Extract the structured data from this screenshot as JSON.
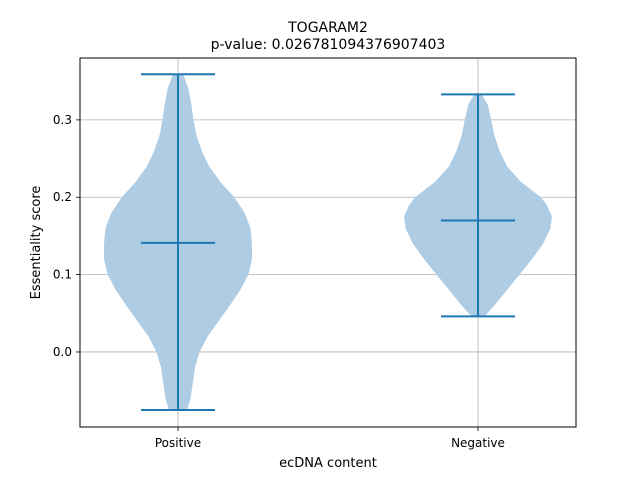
{
  "chart_data": {
    "type": "violin",
    "title": "TOGARAM2",
    "subtitle": "p-value: 0.026781094376907403",
    "xlabel": "ecDNA content",
    "ylabel": "Essentiality score",
    "categories": [
      "Positive",
      "Negative"
    ],
    "ylim": [
      -0.097,
      0.38
    ],
    "yticks": [
      0.0,
      0.1,
      0.2,
      0.3
    ],
    "ytick_labels": [
      "0.0",
      "0.1",
      "0.2",
      "0.3"
    ],
    "grid": true,
    "colors": {
      "body": "#aecde5",
      "line": "#1f77b4",
      "grid": "#b0b0b0"
    },
    "violins": [
      {
        "category": "Positive",
        "min": -0.075,
        "median": 0.141,
        "max": 0.359,
        "density": [
          [
            -0.075,
            0.12
          ],
          [
            -0.06,
            0.17
          ],
          [
            -0.04,
            0.2
          ],
          [
            -0.02,
            0.23
          ],
          [
            0.0,
            0.29
          ],
          [
            0.02,
            0.4
          ],
          [
            0.04,
            0.55
          ],
          [
            0.06,
            0.7
          ],
          [
            0.08,
            0.84
          ],
          [
            0.1,
            0.95
          ],
          [
            0.12,
            1.0
          ],
          [
            0.14,
            1.0
          ],
          [
            0.16,
            0.98
          ],
          [
            0.18,
            0.9
          ],
          [
            0.2,
            0.76
          ],
          [
            0.22,
            0.57
          ],
          [
            0.24,
            0.42
          ],
          [
            0.26,
            0.32
          ],
          [
            0.28,
            0.25
          ],
          [
            0.3,
            0.21
          ],
          [
            0.32,
            0.18
          ],
          [
            0.34,
            0.14
          ],
          [
            0.359,
            0.07
          ]
        ]
      },
      {
        "category": "Negative",
        "min": 0.046,
        "median": 0.17,
        "max": 0.333,
        "density": [
          [
            0.046,
            0.09
          ],
          [
            0.06,
            0.22
          ],
          [
            0.08,
            0.39
          ],
          [
            0.1,
            0.56
          ],
          [
            0.12,
            0.73
          ],
          [
            0.14,
            0.88
          ],
          [
            0.16,
            0.98
          ],
          [
            0.175,
            1.0
          ],
          [
            0.19,
            0.93
          ],
          [
            0.2,
            0.85
          ],
          [
            0.22,
            0.58
          ],
          [
            0.24,
            0.39
          ],
          [
            0.26,
            0.29
          ],
          [
            0.28,
            0.22
          ],
          [
            0.3,
            0.18
          ],
          [
            0.32,
            0.13
          ],
          [
            0.333,
            0.05
          ]
        ]
      }
    ]
  }
}
